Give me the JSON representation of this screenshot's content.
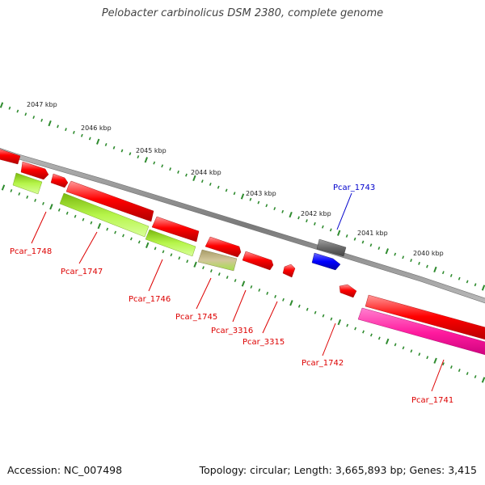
{
  "title": "Pelobacter carbinolicus DSM 2380, complete genome",
  "footer": {
    "accession": "Accession: NC_007498",
    "topology": "Topology: circular; Length: 3,665,893 bp; Genes: 3,415"
  },
  "colors": {
    "backbone": "#8a8a8a",
    "ticks": "#2e8b2e",
    "gene_red": "#ff0000",
    "gene_green": "#a8f03a",
    "gene_khaki": "#c8bb8a",
    "gene_blue": "#0000ff",
    "gene_gray": "#707070",
    "gene_pink": "#ff1a9e",
    "label_red": "#dd0000",
    "label_blue": "#0000cc"
  },
  "kbp_labels": [
    "2047 kbp",
    "2046 kbp",
    "2045 kbp",
    "2044 kbp",
    "2043 kbp",
    "2042 kbp",
    "2041 kbp",
    "2040 kbp"
  ],
  "gene_labels": [
    {
      "text": "Pcar_1748",
      "color": "red"
    },
    {
      "text": "Pcar_1747",
      "color": "red"
    },
    {
      "text": "Pcar_1746",
      "color": "red"
    },
    {
      "text": "Pcar_1745",
      "color": "red"
    },
    {
      "text": "Pcar_3316",
      "color": "red"
    },
    {
      "text": "Pcar_3315",
      "color": "red"
    },
    {
      "text": "Pcar_1742",
      "color": "red"
    },
    {
      "text": "Pcar_1741",
      "color": "red"
    },
    {
      "text": "Pcar_1743",
      "color": "blue"
    }
  ]
}
